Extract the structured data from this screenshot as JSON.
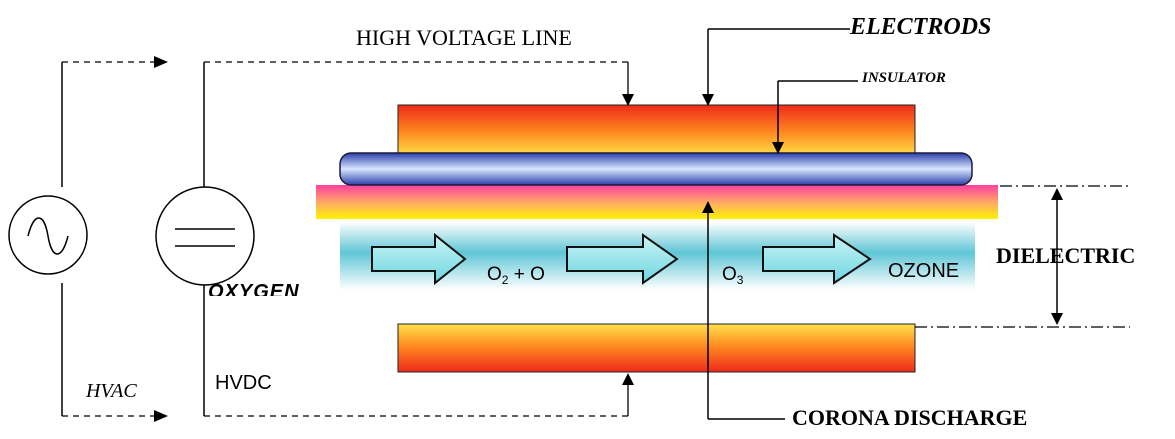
{
  "labels": {
    "high_voltage_line": "HIGH VOLTAGE LINE",
    "electrods": "ELECTRODS",
    "insulator": "INSULATOR",
    "dielectric": "DIELECTRIC",
    "corona_discharge": "CORONA DISCHARGE",
    "hvac": "HVAC",
    "hvdc": "HVDC",
    "oxygen": "OXYGEN",
    "o2_plus_o_base": "O",
    "o2_plus_o_sub": "2",
    "o2_plus_o_rest": " + O",
    "o3_base": "O",
    "o3_sub": "3",
    "ozone": "OZONE"
  },
  "colors": {
    "electrode_top": "#f02a1a",
    "electrode_mid": "#ffd23a",
    "insulator_blue": "#2a3fa8",
    "dielectric_pink": "#ff4fa0",
    "dielectric_yellow": "#fff200",
    "gas_cyan": "#5fc6d6",
    "arrow_fill": "#7fe0e8"
  },
  "icons": {
    "ac_source": "sine-wave-source-icon",
    "dc_source": "dc-source-icon"
  }
}
